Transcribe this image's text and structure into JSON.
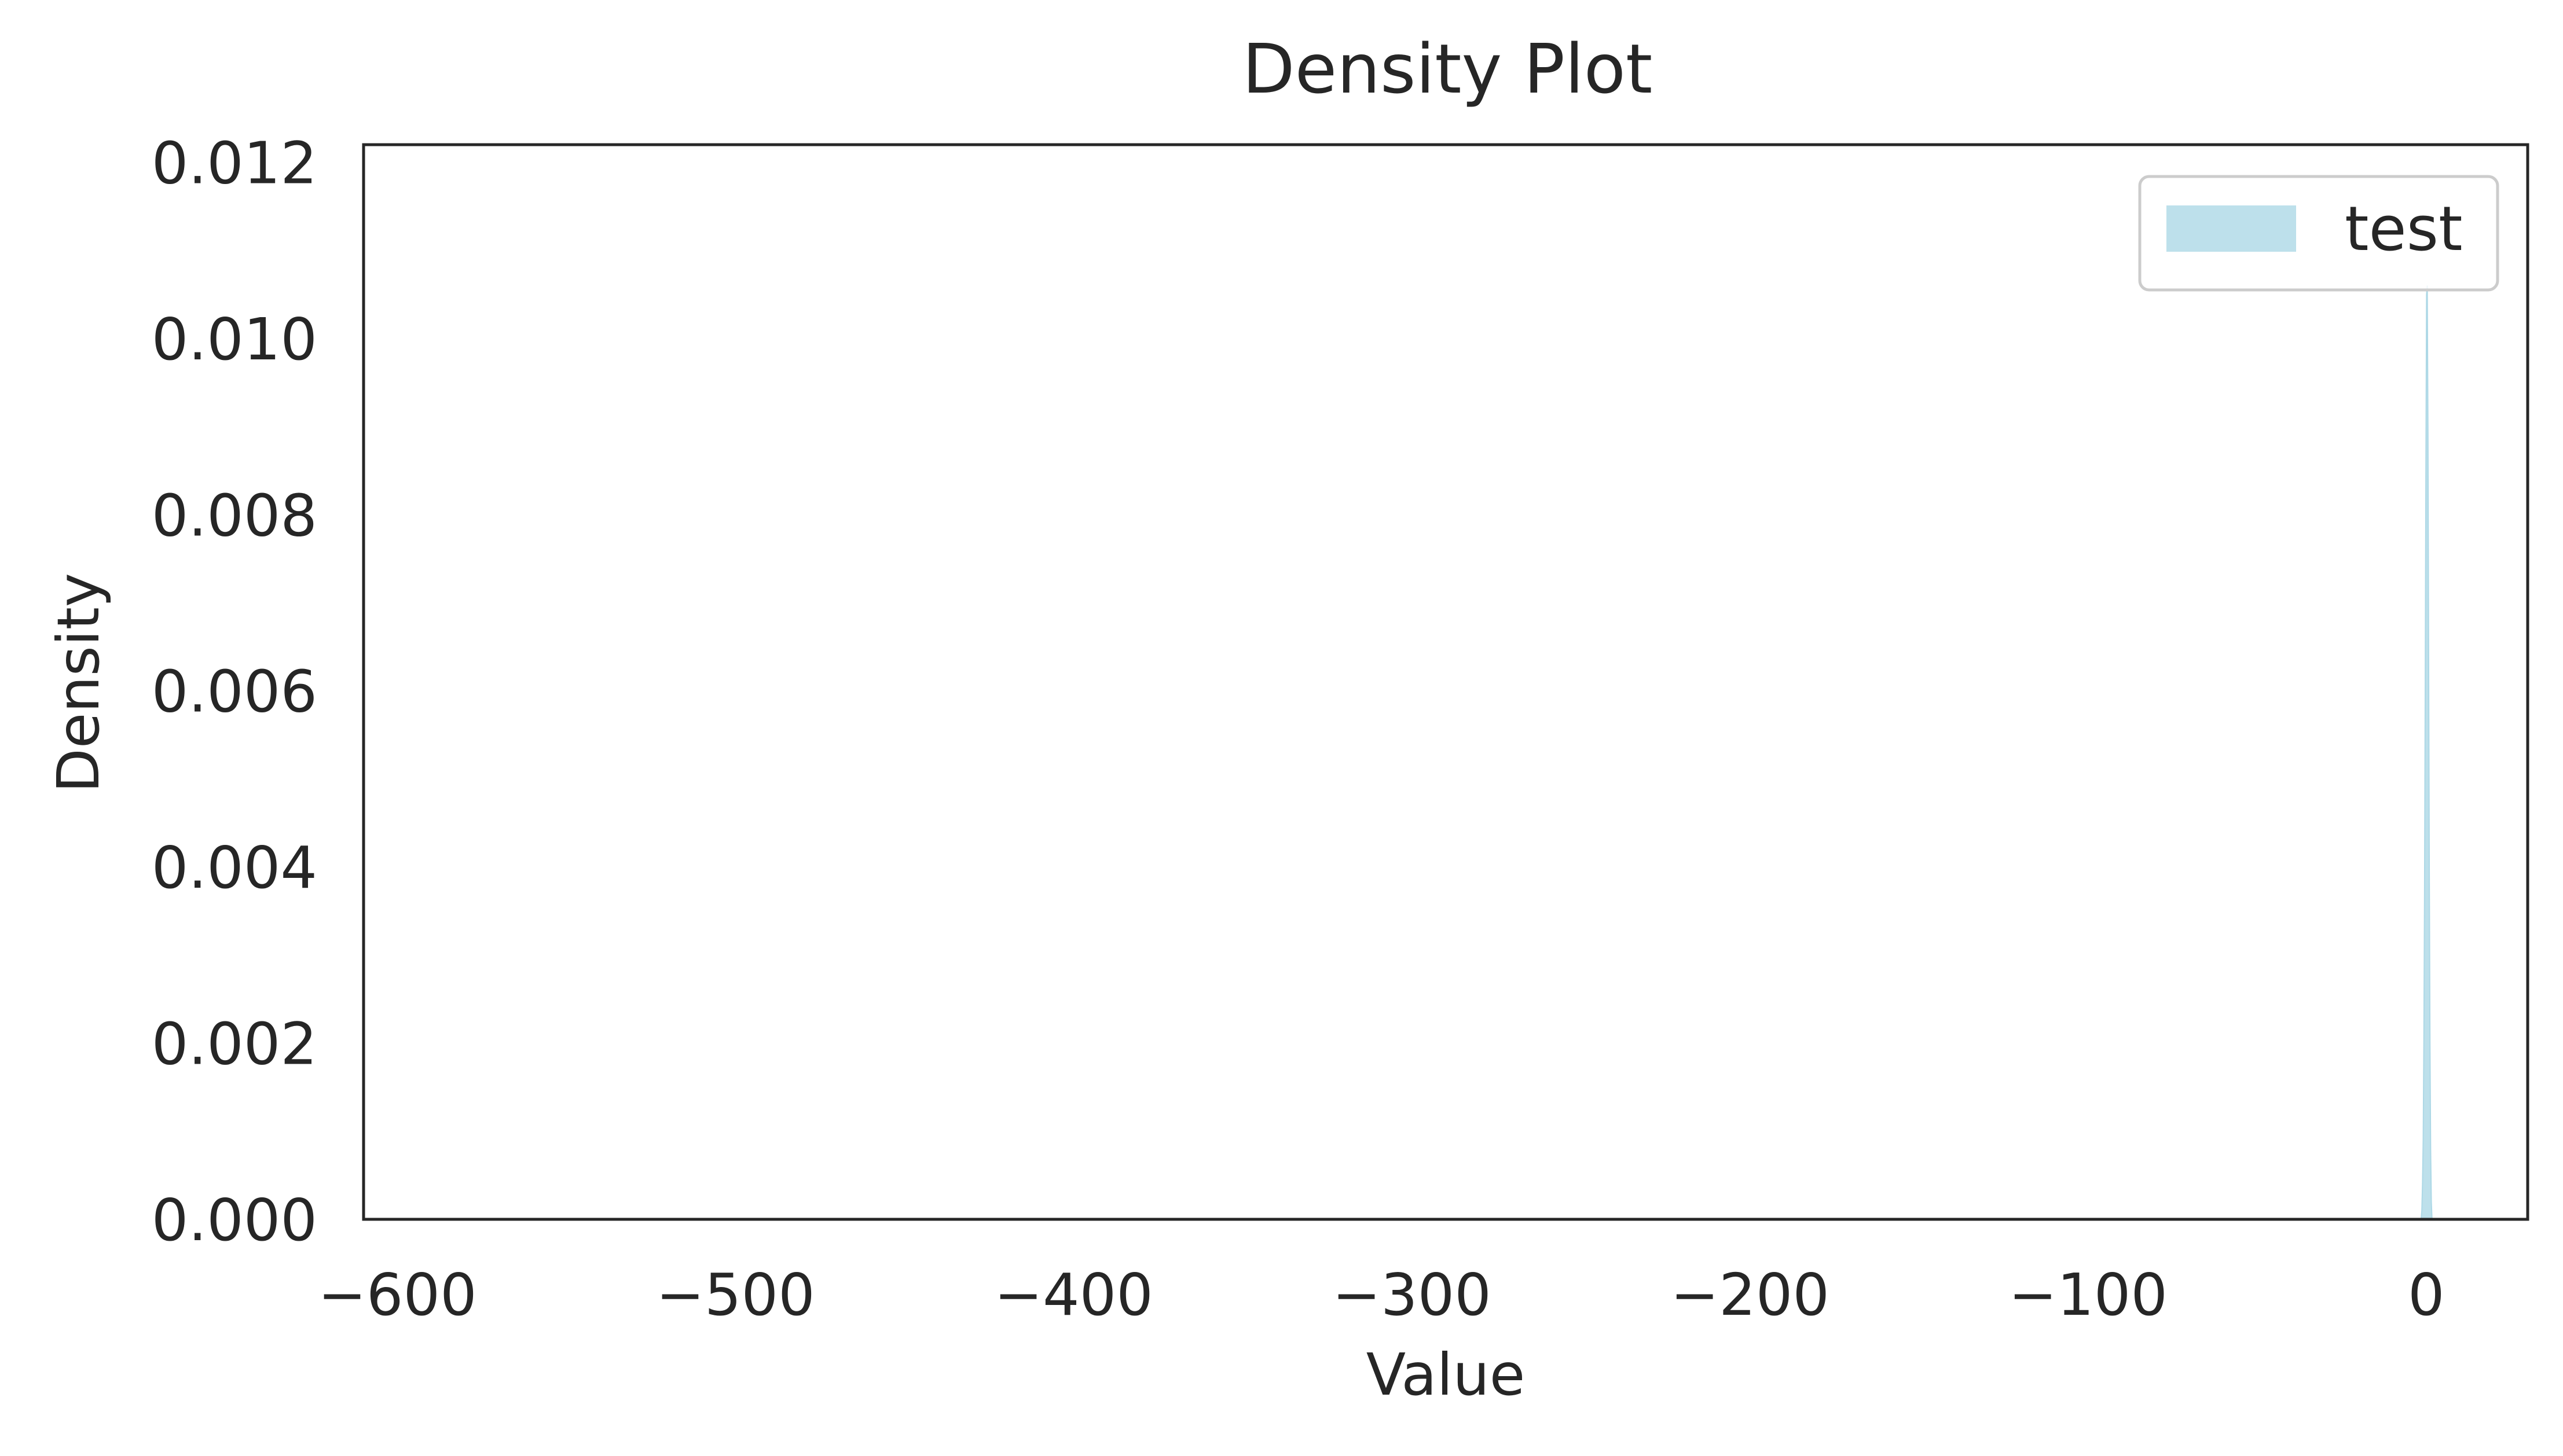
{
  "chart_data": {
    "type": "area",
    "title": "Density Plot",
    "xlabel": "Value",
    "ylabel": "Density",
    "xlim": [
      -610,
      30
    ],
    "ylim": [
      0,
      0.0122
    ],
    "x_ticks": [
      -600,
      -500,
      -400,
      -300,
      -200,
      -100,
      0
    ],
    "x_tick_labels": [
      "−600",
      "−500",
      "−400",
      "−300",
      "−200",
      "−100",
      "0"
    ],
    "y_ticks": [
      0,
      0.002,
      0.004,
      0.006,
      0.008,
      0.01,
      0.012
    ],
    "y_tick_labels": [
      "0.000",
      "0.002",
      "0.004",
      "0.006",
      "0.008",
      "0.010",
      "0.012"
    ],
    "grid": false,
    "legend_position": "top-right",
    "series": [
      {
        "name": "test",
        "color": "#add8e6",
        "x": [
          -1.5,
          -1.3,
          -1.1,
          -0.9,
          -0.7,
          -0.5,
          -0.3,
          -0.1,
          0.1,
          0.3,
          0.5,
          0.7,
          0.9,
          1.1,
          1.3,
          1.5,
          1.7
        ],
        "y": [
          0,
          0.0001,
          0.0004,
          0.0009,
          0.002,
          0.0037,
          0.006,
          0.0085,
          0.0105,
          0.0106,
          0.009,
          0.0065,
          0.004,
          0.002,
          0.0008,
          0.0002,
          0
        ]
      }
    ]
  }
}
